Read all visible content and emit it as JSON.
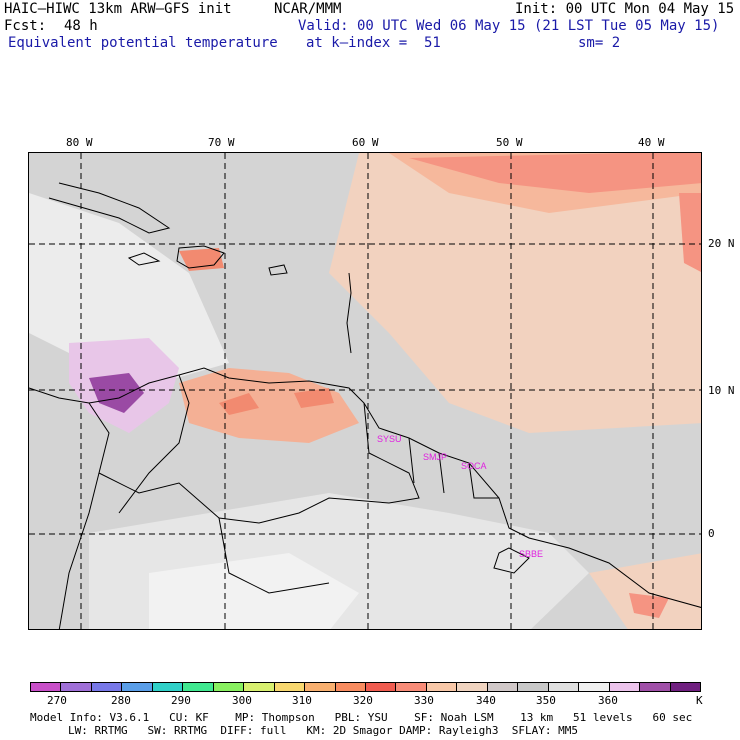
{
  "header": {
    "model": "HAIC–HIWC 13km ARW–GFS init",
    "center": "NCAR/MMM",
    "init": "Init: 00 UTC Mon 04 May 15",
    "fcst_label": "Fcst:",
    "fcst_value": "48 h",
    "valid": "Valid: 00 UTC Wed 06 May 15 (21 LST Tue 05 May 15)",
    "field": "Equivalent potential temperature",
    "level": "at k–index =  51",
    "smoothing": "sm= 2"
  },
  "map": {
    "lon_labels": [
      "80 W",
      "70 W",
      "60 W",
      "50 W",
      "40 W"
    ],
    "lat_labels": [
      "20 N",
      "10 N",
      "0"
    ],
    "stations": [
      "SYSU",
      "SMJP",
      "SOCA",
      "SBBE"
    ]
  },
  "colorbar": {
    "unit": "K",
    "tick_labels": [
      "270",
      "280",
      "290",
      "300",
      "310",
      "320",
      "330",
      "340",
      "350",
      "360"
    ],
    "colors": [
      "#c84fc8",
      "#a070d8",
      "#7878e8",
      "#5a9ee8",
      "#30d0c8",
      "#40e890",
      "#88f060",
      "#d8f070",
      "#f8d870",
      "#f8b070",
      "#f88c60",
      "#f05c50",
      "#f88c78",
      "#f8c8a8",
      "#f0d4c0",
      "#d0c8c8",
      "#c8c8c8",
      "#e0e0e0",
      "#f0f0f0",
      "#ecc4ec",
      "#a050a8",
      "#702080"
    ]
  },
  "footer": {
    "line1": "Model Info: V3.6.1   CU: KF    MP: Thompson   PBL: YSU    SF: Noah LSM    13 km   51 levels   60 sec",
    "line2": "LW: RRTMG   SW: RRTMG  DIFF: full   KM: 2D Smagor DAMP: Rayleigh3  SFLAY: MM5"
  }
}
